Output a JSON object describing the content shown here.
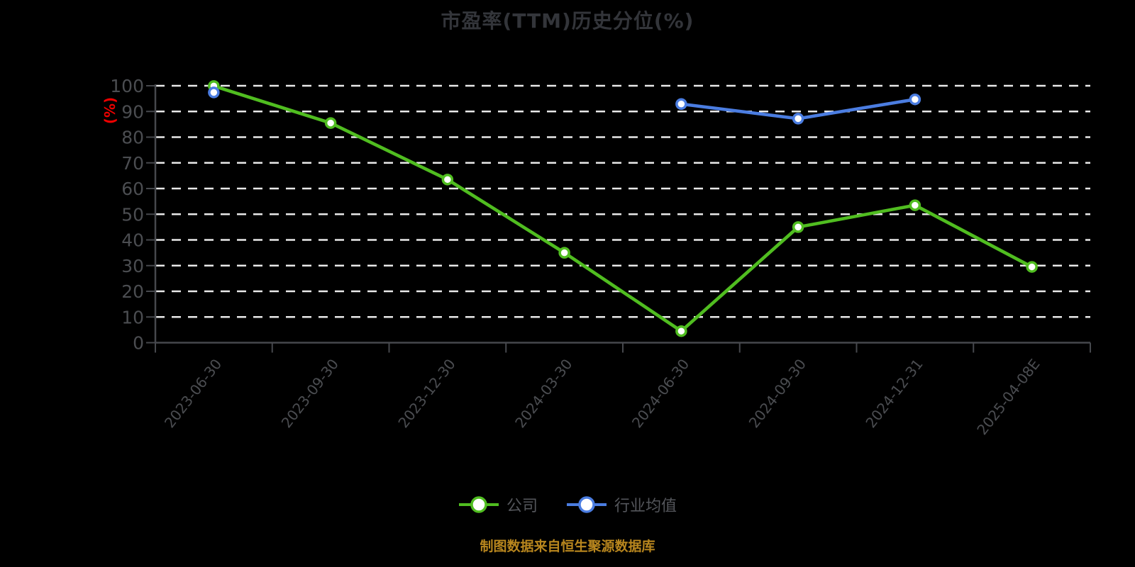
{
  "title": "市盈率(TTM)历史分位(%)",
  "y_axis": {
    "name": "(%)"
  },
  "footer": "制图数据来自恒生聚源数据库",
  "legend": [
    {
      "label": "公司"
    },
    {
      "label": "行业均值"
    }
  ],
  "colors": {
    "background": "#000000",
    "title": "#33353a",
    "axis": "#46484d",
    "gridline": "#e9e9e9",
    "tick_label": "#4b4d51",
    "legend_text": "#54565b",
    "y_axis_name": "#ec0000",
    "footer": "#b8861e",
    "company_series": "#50bd20",
    "industry_series": "#4b7de1",
    "marker_fill": "#ffffff"
  },
  "chart_data": {
    "type": "line",
    "categories": [
      "2023-06-30",
      "2023-09-30",
      "2023-12-30",
      "2024-03-30",
      "2024-06-30",
      "2024-09-30",
      "2024-12-31",
      "2025-04-08E"
    ],
    "series": [
      {
        "key": "company",
        "name": "公司",
        "color": "#50bd20",
        "values": [
          99.9,
          85.5,
          63.5,
          35,
          4.5,
          45,
          53.5,
          29.5
        ]
      },
      {
        "key": "industry-average",
        "name": "行业均值",
        "color": "#4b7de1",
        "values": [
          97.4,
          null,
          null,
          null,
          92.9,
          87.2,
          94.7,
          null
        ]
      }
    ],
    "title": "市盈率(TTM)历史分位(%)",
    "xlabel": "",
    "ylabel": "(%)",
    "ylim": [
      0,
      100
    ],
    "y_tick_step": 10,
    "grid": "horizontal-dashed-white",
    "legend_position": "bottom",
    "x_label_style": "rotated dates",
    "annotation": "制图数据来自恒生聚源数据库"
  }
}
